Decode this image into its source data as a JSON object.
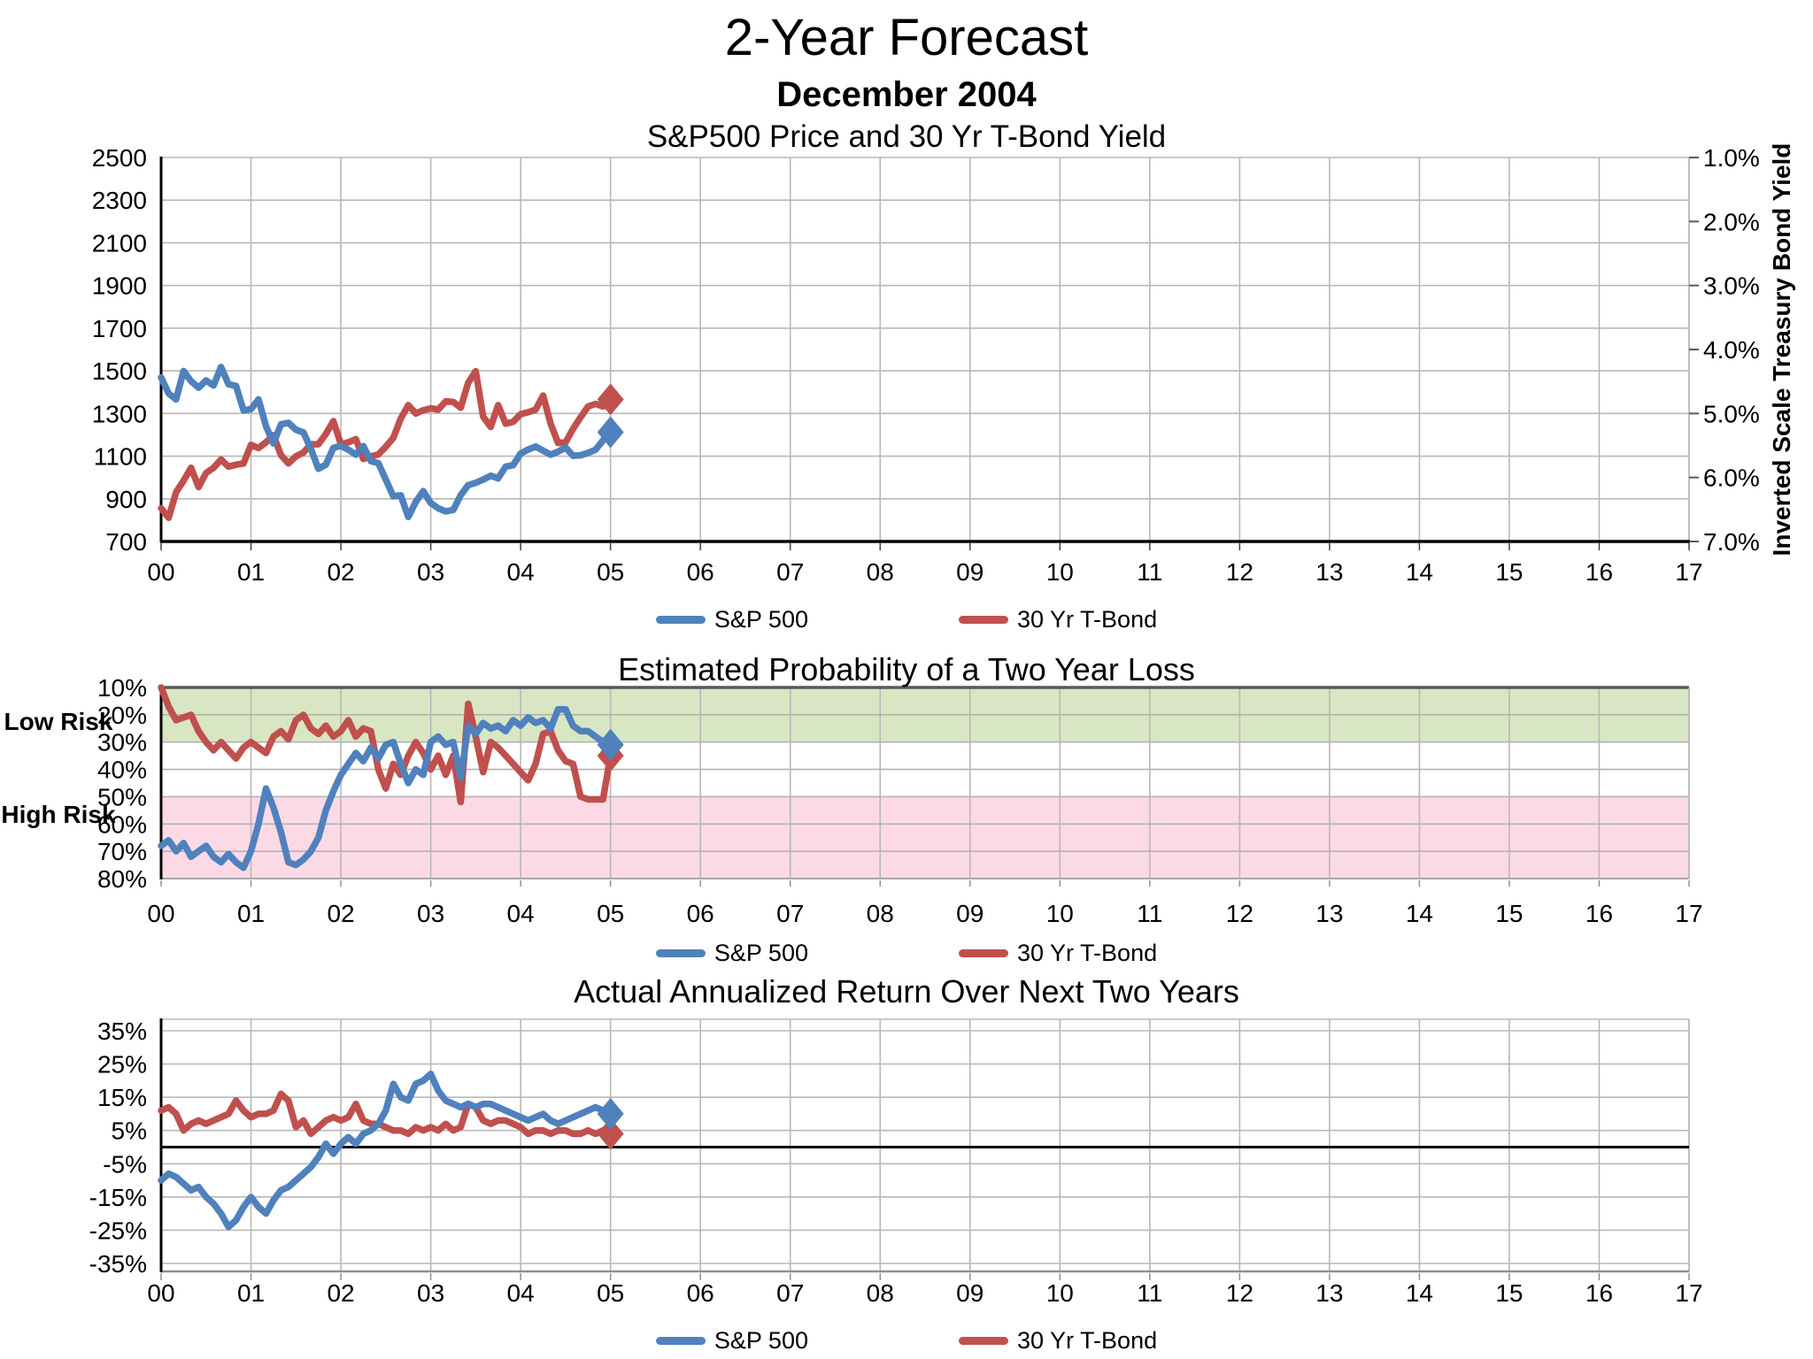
{
  "page": {
    "title": "2-Year Forecast",
    "subtitle": "December 2004"
  },
  "colors": {
    "sp500": "#4f81bd",
    "tbond": "#c0504d",
    "green_band": "#d9e6c3",
    "pink_band": "#fbdae6",
    "gridline": "#b8b8b8"
  },
  "risk_labels": {
    "low": "Low Risk",
    "high": "High Risk"
  },
  "x_axis": {
    "tick_labels": [
      "00",
      "01",
      "02",
      "03",
      "04",
      "05",
      "06",
      "07",
      "08",
      "09",
      "10",
      "11",
      "12",
      "13",
      "14",
      "15",
      "16",
      "17"
    ]
  },
  "chart_data": [
    {
      "type": "line",
      "title": "S&P500 Price and 30 Yr T-Bond Yield",
      "x_note": "monthly points, Dec 1999 through Dec 2004, x axis in years 00-17",
      "left_axis": {
        "ticks": [
          2500,
          2300,
          2100,
          1900,
          1700,
          1500,
          1300,
          1100,
          900,
          700
        ],
        "range": [
          700,
          2500
        ]
      },
      "right_axis": {
        "label": "Inverted Scale Treasury Bond Yield",
        "ticks": [
          "1.0%",
          "2.0%",
          "3.0%",
          "4.0%",
          "5.0%",
          "6.0%",
          "7.0%"
        ],
        "range": [
          1,
          7
        ],
        "inverted": true
      },
      "legend_position": "bottom",
      "end_markers": "diamond",
      "series": [
        {
          "name": "S&P 500",
          "axis": "left",
          "color_key": "sp500",
          "values": [
            1469,
            1394,
            1366,
            1499,
            1452,
            1421,
            1455,
            1431,
            1518,
            1437,
            1429,
            1315,
            1320,
            1366,
            1240,
            1160,
            1249,
            1256,
            1224,
            1211,
            1134,
            1041,
            1060,
            1139,
            1148,
            1130,
            1107,
            1147,
            1077,
            1067,
            990,
            912,
            916,
            815,
            886,
            936,
            880,
            856,
            841,
            848,
            917,
            964,
            975,
            990,
            1008,
            996,
            1051,
            1058,
            1112,
            1131,
            1145,
            1126,
            1107,
            1121,
            1141,
            1102,
            1104,
            1115,
            1130,
            1174,
            1212
          ]
        },
        {
          "name": "30 Yr T-Bond",
          "axis": "right",
          "color_key": "tbond",
          "values": [
            6.48,
            6.63,
            6.23,
            6.05,
            5.85,
            6.15,
            5.93,
            5.85,
            5.72,
            5.83,
            5.8,
            5.78,
            5.49,
            5.54,
            5.45,
            5.34,
            5.65,
            5.78,
            5.67,
            5.61,
            5.48,
            5.48,
            5.32,
            5.12,
            5.48,
            5.45,
            5.4,
            5.71,
            5.67,
            5.64,
            5.52,
            5.38,
            5.08,
            4.87,
            5.0,
            4.95,
            4.92,
            4.94,
            4.81,
            4.82,
            4.91,
            4.52,
            4.34,
            5.05,
            5.21,
            4.87,
            5.16,
            5.13,
            5.01,
            4.98,
            4.94,
            4.72,
            5.16,
            5.46,
            5.45,
            5.24,
            5.06,
            4.89,
            4.85,
            4.89,
            4.78
          ]
        }
      ]
    },
    {
      "type": "line",
      "title": "Estimated Probability of a Two Year Loss",
      "x_note": "monthly points, Dec 1999 through Dec 2004, x axis in years 00-17",
      "y_axis": {
        "ticks": [
          "10%",
          "20%",
          "30%",
          "40%",
          "50%",
          "60%",
          "70%",
          "80%"
        ],
        "range": [
          10,
          80
        ],
        "inverted": true
      },
      "bands": [
        {
          "label": "Low Risk",
          "from": 10,
          "to": 30,
          "color_key": "green_band"
        },
        {
          "label": "High Risk",
          "from": 50,
          "to": 80,
          "color_key": "pink_band"
        }
      ],
      "legend_position": "bottom",
      "end_markers": "diamond",
      "series": [
        {
          "name": "S&P 500",
          "color_key": "sp500",
          "values": [
            68,
            66,
            70,
            67,
            72,
            70,
            68,
            72,
            74,
            71,
            74,
            76,
            70,
            60,
            47,
            54,
            63,
            74,
            75,
            73,
            70,
            65,
            55,
            48,
            42,
            38,
            34,
            37,
            32,
            36,
            31,
            30,
            38,
            45,
            40,
            42,
            30,
            28,
            31,
            30,
            43,
            24,
            27,
            23,
            25,
            24,
            26,
            22,
            24,
            21,
            23,
            22,
            25,
            18,
            18,
            24,
            26,
            26,
            28,
            30,
            31
          ]
        },
        {
          "name": "30 Yr T-Bond",
          "color_key": "tbond",
          "values": [
            10,
            17,
            22,
            21,
            20,
            26,
            30,
            33,
            30,
            33,
            36,
            32,
            30,
            32,
            34,
            28,
            26,
            29,
            22,
            20,
            25,
            27,
            24,
            28,
            26,
            22,
            28,
            25,
            26,
            40,
            47,
            38,
            42,
            35,
            30,
            34,
            40,
            35,
            42,
            35,
            52,
            16,
            28,
            41,
            30,
            32,
            35,
            38,
            41,
            44,
            38,
            27,
            26,
            33,
            37,
            38,
            50,
            51,
            51,
            51,
            35
          ]
        }
      ]
    },
    {
      "type": "line",
      "title": "Actual Annualized Return Over Next Two Years",
      "x_note": "monthly points, Dec 1999 through Dec 2004, x axis in years 00-17",
      "y_axis": {
        "ticks": [
          "35%",
          "25%",
          "15%",
          "5%",
          "-5%",
          "-15%",
          "-25%",
          "-35%"
        ],
        "range": [
          -35,
          35
        ]
      },
      "zero_line": true,
      "legend_position": "bottom",
      "end_markers": "diamond",
      "series": [
        {
          "name": "S&P 500",
          "color_key": "sp500",
          "values": [
            -10,
            -8,
            -9,
            -11,
            -13,
            -12,
            -15,
            -17,
            -20,
            -24,
            -22,
            -18,
            -15,
            -18,
            -20,
            -16,
            -13,
            -12,
            -10,
            -8,
            -6,
            -3,
            1,
            -2,
            1,
            3,
            1,
            4,
            5,
            7,
            11,
            19,
            15,
            14,
            19,
            20,
            22,
            17,
            14,
            13,
            12,
            13,
            12,
            13,
            13,
            12,
            11,
            10,
            9,
            8,
            9,
            10,
            8,
            7,
            8,
            9,
            10,
            11,
            12,
            11,
            10
          ]
        },
        {
          "name": "30 Yr T-Bond",
          "color_key": "tbond",
          "values": [
            11,
            12,
            10,
            5,
            7,
            8,
            7,
            8,
            9,
            10,
            14,
            11,
            9,
            10,
            10,
            11,
            16,
            14,
            6,
            8,
            4,
            6,
            8,
            9,
            8,
            9,
            13,
            8,
            7,
            7,
            6,
            5,
            5,
            4,
            6,
            5,
            6,
            5,
            7,
            5,
            6,
            13,
            12,
            8,
            7,
            8,
            8,
            7,
            6,
            4,
            5,
            5,
            4,
            5,
            5,
            4,
            4,
            5,
            4,
            5,
            4
          ]
        }
      ]
    }
  ]
}
